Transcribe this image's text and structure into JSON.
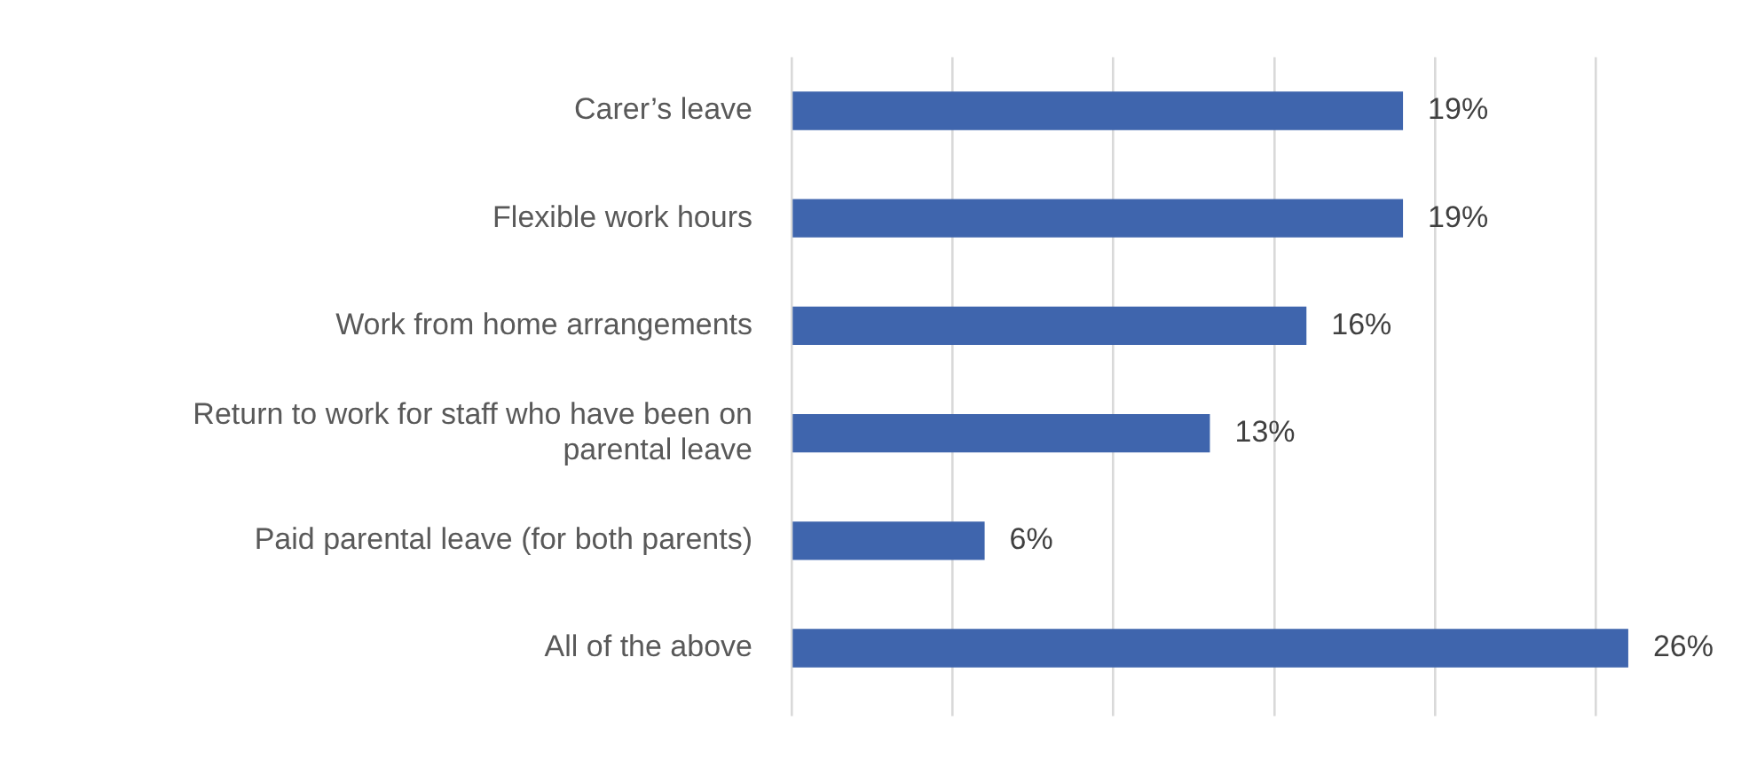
{
  "chart_data": {
    "type": "bar",
    "orientation": "horizontal",
    "categories": [
      "Carer’s leave",
      "Flexible work hours",
      "Work from home arrangements",
      "Return to work for staff who have been on parental leave",
      "Paid parental leave (for both parents)",
      "All of the above"
    ],
    "values": [
      19,
      19,
      16,
      13,
      6,
      26
    ],
    "value_labels": [
      "19%",
      "19%",
      "16%",
      "13%",
      "6%",
      "26%"
    ],
    "color": "#3f65ad",
    "xticks": [
      {
        "value": 0,
        "label": null
      },
      {
        "value": 5,
        "label": null
      },
      {
        "value": 10,
        "label": null
      },
      {
        "value": 15,
        "label": null
      },
      {
        "value": 20,
        "label": null
      },
      {
        "value": 25,
        "label": null
      }
    ],
    "grid": "x",
    "tick_labels": "y",
    "legend": false
  }
}
